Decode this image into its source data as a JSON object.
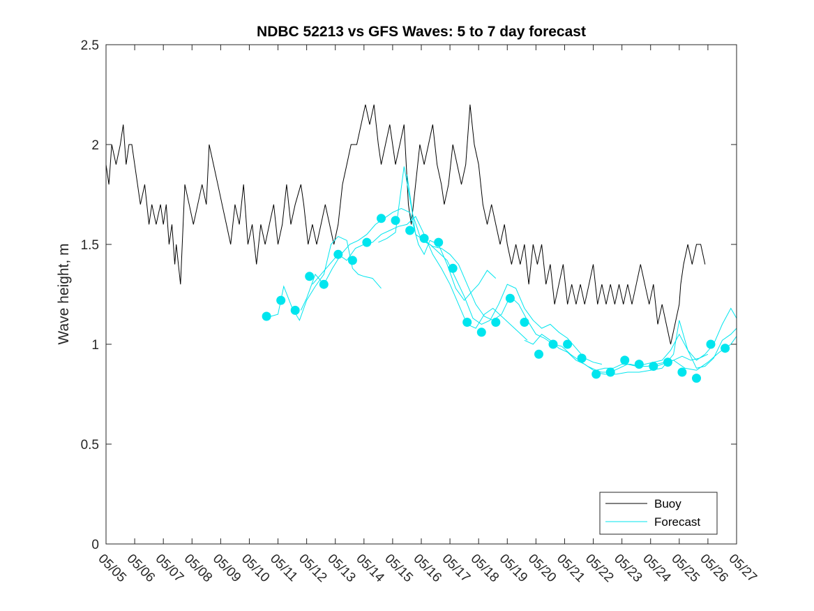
{
  "chart_data": {
    "type": "line",
    "title": "NDBC 52213 vs GFS Waves: 5 to 7 day forecast",
    "ylabel": "Wave height, m",
    "xlabel": "",
    "x_tick_labels": [
      "05/05",
      "05/06",
      "05/07",
      "05/08",
      "05/09",
      "05/10",
      "05/11",
      "05/12",
      "05/13",
      "05/14",
      "05/15",
      "05/16",
      "05/17",
      "05/18",
      "05/19",
      "05/20",
      "05/21",
      "05/22",
      "05/23",
      "05/24",
      "05/25",
      "05/26",
      "05/27"
    ],
    "y_tick_labels": [
      "0",
      "0.5",
      "1",
      "1.5",
      "2",
      "2.5"
    ],
    "xlim": [
      "05/05",
      "05/27"
    ],
    "ylim": [
      0,
      2.5
    ],
    "grid": false,
    "legend_position": "bottom-right",
    "legend": [
      {
        "name": "Buoy",
        "color": "#000000"
      },
      {
        "name": "Forecast",
        "color": "#00e5ee"
      }
    ],
    "series": [
      {
        "name": "Buoy",
        "color": "#000000",
        "x_day_of_may": [
          5.0,
          5.1,
          5.2,
          5.35,
          5.5,
          5.6,
          5.7,
          5.8,
          5.9,
          6.0,
          6.2,
          6.35,
          6.5,
          6.6,
          6.75,
          6.9,
          7.0,
          7.1,
          7.2,
          7.3,
          7.4,
          7.45,
          7.6,
          7.75,
          7.9,
          8.05,
          8.2,
          8.35,
          8.5,
          8.6,
          8.75,
          8.9,
          9.05,
          9.2,
          9.35,
          9.5,
          9.65,
          9.8,
          9.95,
          10.1,
          10.25,
          10.4,
          10.55,
          10.7,
          10.85,
          11.0,
          11.15,
          11.3,
          11.45,
          11.6,
          11.8,
          11.9,
          12.05,
          12.2,
          12.35,
          12.5,
          12.65,
          12.8,
          12.95,
          13.1,
          13.25,
          13.4,
          13.55,
          13.75,
          13.9,
          14.05,
          14.2,
          14.35,
          14.5,
          14.6,
          14.75,
          14.9,
          15.0,
          15.1,
          15.25,
          15.4,
          15.55,
          15.65,
          15.8,
          15.95,
          16.1,
          16.25,
          16.4,
          16.55,
          16.7,
          16.8,
          16.95,
          17.1,
          17.25,
          17.4,
          17.55,
          17.7,
          17.85,
          18.0,
          18.15,
          18.3,
          18.45,
          18.6,
          18.75,
          18.9,
          19.0,
          19.15,
          19.3,
          19.45,
          19.6,
          19.75,
          19.9,
          20.05,
          20.2,
          20.35,
          20.5,
          20.65,
          20.8,
          20.95,
          21.1,
          21.25,
          21.4,
          21.55,
          21.7,
          21.85,
          22.0,
          22.15,
          22.3,
          22.45,
          22.6,
          22.75,
          22.9,
          23.05,
          23.2,
          23.35,
          23.5,
          23.65,
          23.8,
          23.95,
          24.1,
          24.25,
          24.4,
          24.55,
          24.7,
          24.85,
          25.0,
          25.05,
          25.15,
          25.3,
          25.45,
          25.6,
          25.75,
          25.9,
          26.05,
          26.15,
          26.3,
          26.4
        ],
        "y": [
          1.9,
          1.8,
          2.0,
          1.9,
          2.0,
          2.1,
          1.9,
          2.0,
          2.0,
          1.9,
          1.7,
          1.8,
          1.6,
          1.7,
          1.6,
          1.7,
          1.6,
          1.7,
          1.5,
          1.6,
          1.4,
          1.5,
          1.3,
          1.8,
          1.7,
          1.6,
          1.7,
          1.8,
          1.7,
          2.0,
          1.9,
          1.8,
          1.7,
          1.6,
          1.5,
          1.7,
          1.6,
          1.8,
          1.5,
          1.6,
          1.4,
          1.6,
          1.5,
          1.6,
          1.7,
          1.5,
          1.6,
          1.8,
          1.6,
          1.7,
          1.8,
          1.7,
          1.5,
          1.6,
          1.5,
          1.6,
          1.7,
          1.6,
          1.5,
          1.6,
          1.8,
          1.9,
          2.0,
          2.0,
          2.1,
          2.2,
          2.1,
          2.2,
          2.0,
          1.9,
          2.0,
          2.1,
          2.0,
          1.9,
          2.0,
          2.1,
          1.7,
          1.6,
          1.8,
          2.0,
          1.9,
          2.0,
          2.1,
          1.9,
          1.8,
          1.7,
          1.8,
          2.0,
          1.9,
          1.8,
          1.9,
          2.2,
          2.0,
          1.9,
          1.7,
          1.6,
          1.7,
          1.6,
          1.5,
          1.6,
          1.5,
          1.4,
          1.5,
          1.4,
          1.5,
          1.3,
          1.5,
          1.4,
          1.5,
          1.3,
          1.4,
          1.2,
          1.3,
          1.4,
          1.2,
          1.3,
          1.2,
          1.3,
          1.2,
          1.3,
          1.4,
          1.2,
          1.3,
          1.2,
          1.3,
          1.2,
          1.3,
          1.2,
          1.3,
          1.2,
          1.3,
          1.4,
          1.3,
          1.2,
          1.3,
          1.1,
          1.2,
          1.1,
          1.0,
          1.1,
          1.2,
          1.3,
          1.4,
          1.5,
          1.4,
          1.5,
          1.5,
          1.4
        ]
      },
      {
        "name": "Forecast",
        "color": "#00e5ee",
        "runs": [
          {
            "x_day_of_may": [
              10.75,
              11.0,
              11.2,
              11.5,
              11.75,
              12.0,
              12.3,
              12.6,
              12.85,
              13.1,
              13.4,
              13.6,
              13.8,
              14.0,
              14.3,
              14.6
            ],
            "y": [
              1.14,
              1.15,
              1.29,
              1.18,
              1.12,
              1.22,
              1.29,
              1.35,
              1.5,
              1.54,
              1.52,
              1.38,
              1.35,
              1.34,
              1.33,
              1.28
            ]
          },
          {
            "x_day_of_may": [
              11.8,
              12.0,
              12.3,
              12.6,
              12.9,
              13.2,
              13.5,
              13.8,
              14.1,
              14.4,
              14.7,
              15.0,
              15.3,
              15.6,
              15.9,
              16.1,
              16.3,
              16.6,
              16.9,
              17.2,
              17.5,
              17.8,
              18.0,
              18.3,
              18.6
            ],
            "y": [
              1.17,
              1.23,
              1.35,
              1.3,
              1.38,
              1.45,
              1.5,
              1.52,
              1.55,
              1.6,
              1.63,
              1.66,
              1.68,
              1.66,
              1.5,
              1.45,
              1.52,
              1.5,
              1.4,
              1.28,
              1.22,
              1.27,
              1.3,
              1.37,
              1.33
            ]
          },
          {
            "x_day_of_may": [
              12.2,
              12.5,
              12.8,
              13.1,
              13.4,
              13.7,
              14.0,
              14.3,
              14.6,
              14.9,
              15.2,
              15.5,
              15.8,
              16.1,
              16.4,
              16.7,
              17.0,
              17.3,
              17.6,
              17.9,
              18.2,
              18.5,
              18.8,
              19.1,
              19.4,
              19.7
            ],
            "y": [
              1.3,
              1.35,
              1.4,
              1.45,
              1.42,
              1.48,
              1.5,
              1.51,
              1.55,
              1.57,
              1.59,
              1.6,
              1.64,
              1.55,
              1.45,
              1.38,
              1.3,
              1.2,
              1.1,
              1.08,
              1.15,
              1.18,
              1.14,
              1.1,
              1.06,
              1.02
            ]
          },
          {
            "x_day_of_may": [
              14.5,
              14.8,
              15.1,
              15.4,
              15.7,
              16.0,
              16.3,
              16.6,
              16.9,
              17.2,
              17.5,
              17.8,
              18.1,
              18.4,
              18.7,
              19.0,
              19.3,
              19.6,
              19.9,
              20.2,
              20.5,
              20.8,
              21.1,
              21.4,
              21.7,
              22.0,
              22.3
            ],
            "y": [
              1.51,
              1.53,
              1.56,
              1.89,
              1.65,
              1.52,
              1.5,
              1.46,
              1.42,
              1.33,
              1.24,
              1.13,
              1.1,
              1.12,
              1.2,
              1.3,
              1.28,
              1.18,
              1.12,
              1.08,
              1.1,
              1.06,
              1.03,
              0.98,
              0.93,
              0.91,
              0.9
            ]
          },
          {
            "x_day_of_may": [
              15.5,
              15.8,
              16.1,
              16.4,
              16.7,
              17.0,
              17.3,
              17.6,
              17.9,
              18.2,
              18.5,
              18.8,
              19.1,
              19.4,
              19.7,
              20.0,
              20.3,
              20.6,
              20.9,
              21.2,
              21.5,
              21.8,
              22.1,
              22.4,
              22.7,
              23.0,
              23.3,
              23.6,
              23.9,
              24.2,
              24.5,
              24.8,
              25.1,
              25.4,
              25.7,
              26.0
            ],
            "y": [
              1.85,
              1.55,
              1.52,
              1.49,
              1.48,
              1.45,
              1.4,
              1.3,
              1.2,
              1.14,
              1.12,
              1.15,
              1.24,
              1.2,
              1.12,
              1.05,
              1.03,
              1.0,
              0.99,
              0.95,
              0.92,
              0.89,
              0.87,
              0.88,
              0.88,
              0.9,
              0.9,
              0.89,
              0.89,
              0.9,
              0.91,
              0.92,
              0.94,
              0.92,
              0.93,
              0.95
            ]
          },
          {
            "x_day_of_may": [
              19.6,
              19.9,
              20.2,
              20.5,
              20.8,
              21.1,
              21.4,
              21.7,
              22.0,
              22.3,
              22.6,
              22.9,
              23.2,
              23.5,
              23.8,
              24.1,
              24.4,
              24.7,
              25.0,
              25.3,
              25.6,
              25.9,
              26.2,
              26.5,
              26.8,
              27.0
            ],
            "y": [
              1.02,
              1.0,
              1.05,
              1.02,
              0.98,
              0.96,
              0.92,
              0.9,
              0.87,
              0.86,
              0.86,
              0.88,
              0.9,
              0.89,
              0.9,
              0.91,
              0.92,
              0.97,
              1.05,
              0.97,
              0.92,
              0.95,
              1.0,
              1.1,
              1.18,
              1.13
            ]
          },
          {
            "x_day_of_may": [
              22.0,
              22.4,
              22.8,
              23.2,
              23.6,
              24.0,
              24.4,
              24.8,
              25.0,
              25.3,
              25.6,
              25.9,
              26.2,
              26.5,
              26.8,
              27.0
            ],
            "y": [
              0.86,
              0.85,
              0.85,
              0.86,
              0.86,
              0.87,
              0.88,
              0.95,
              1.12,
              0.97,
              0.88,
              0.89,
              0.93,
              1.02,
              1.05,
              1.08
            ]
          },
          {
            "x_day_of_may": [
              24.0,
              24.4,
              24.8,
              25.2,
              25.6,
              26.0,
              26.4,
              26.8,
              27.0
            ],
            "y": [
              0.88,
              0.9,
              0.92,
              0.88,
              0.87,
              0.91,
              0.96,
              1.0,
              1.04
            ]
          }
        ],
        "markers_x_day_of_may": [
          10.6,
          11.1,
          11.6,
          12.1,
          12.6,
          13.1,
          13.6,
          14.1,
          14.6,
          15.1,
          15.6,
          16.1,
          16.6,
          17.1,
          17.6,
          18.1,
          18.6,
          19.1,
          19.6,
          20.1,
          20.6,
          21.1,
          21.6,
          22.1,
          22.6,
          23.1,
          23.6,
          24.1,
          24.6,
          25.1,
          25.6,
          26.1,
          26.6
        ],
        "markers_y": [
          1.14,
          1.22,
          1.17,
          1.34,
          1.3,
          1.45,
          1.42,
          1.51,
          1.63,
          1.62,
          1.57,
          1.53,
          1.51,
          1.38,
          1.11,
          1.06,
          1.11,
          1.23,
          1.11,
          0.95,
          1.0,
          1.0,
          0.93,
          0.85,
          0.86,
          0.92,
          0.9,
          0.89,
          0.91,
          0.86,
          0.83,
          1.0,
          0.98
        ]
      }
    ]
  }
}
